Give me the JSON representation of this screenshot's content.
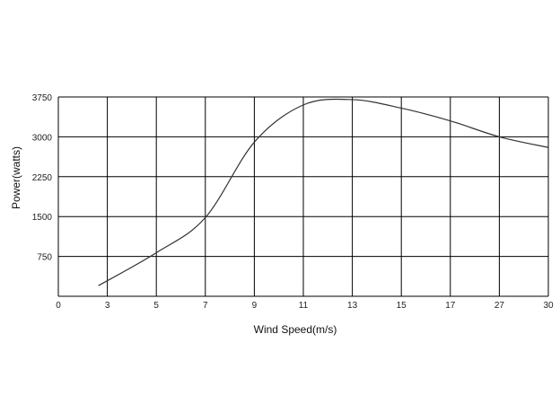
{
  "chart_data": {
    "type": "line",
    "title": "",
    "xlabel": "Wind Speed(m/s)",
    "ylabel": "Power(watts)",
    "x_tick_labels": [
      "0",
      "3",
      "5",
      "7",
      "9",
      "11",
      "13",
      "15",
      "17",
      "27",
      "30"
    ],
    "y_tick_labels": [
      "750",
      "1500",
      "2250",
      "3000",
      "3750"
    ],
    "ylim": [
      0,
      3750
    ],
    "grid": true,
    "series": [
      {
        "x": [
          "3",
          "5",
          "7",
          "9",
          "11",
          "13",
          "15",
          "17",
          "27",
          "30"
        ],
        "values": [
          200,
          820,
          1480,
          2900,
          3600,
          3700,
          3540,
          3300,
          3000,
          2800
        ]
      }
    ]
  },
  "colors": {
    "grid": "#000000",
    "line": "#333333"
  }
}
